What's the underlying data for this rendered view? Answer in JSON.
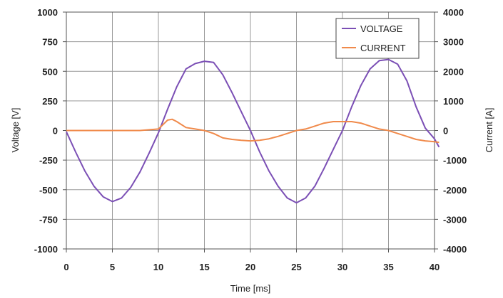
{
  "chart_data": {
    "type": "line",
    "xlabel": "Time [ms]",
    "ylabel": "Voltage [V]",
    "y2label": "Current [A]",
    "xlim": [
      0,
      40
    ],
    "ylim": [
      -1000,
      1000
    ],
    "y2lim": [
      -4000,
      4000
    ],
    "x_ticks": [
      "0",
      "5",
      "10",
      "15",
      "20",
      "25",
      "30",
      "35",
      "40"
    ],
    "y_ticks": [
      "1000",
      "750",
      "500",
      "250",
      "0",
      "-250",
      "-500",
      "-750",
      "-1000"
    ],
    "y2_ticks": [
      "4000",
      "3000",
      "2000",
      "1000",
      "0",
      "-1000",
      "-2000",
      "-3000",
      "-4000"
    ],
    "grid": true,
    "legend_position": "top-right",
    "series": [
      {
        "name": "VOLTAGE",
        "axis": "left",
        "color": "#7b4fb5",
        "x": [
          0,
          1,
          2,
          3,
          4,
          5,
          6,
          7,
          8,
          9,
          10,
          11,
          12,
          13,
          14,
          15,
          16,
          17,
          18,
          19,
          20,
          21,
          22,
          23,
          24,
          25,
          26,
          27,
          28,
          29,
          30,
          31,
          32,
          33,
          34,
          35,
          36,
          37,
          38,
          39,
          40,
          40.5
        ],
        "y": [
          -10,
          -180,
          -340,
          -470,
          -560,
          -600,
          -570,
          -480,
          -350,
          -190,
          -20,
          180,
          370,
          520,
          565,
          585,
          575,
          470,
          320,
          160,
          0,
          -180,
          -340,
          -470,
          -570,
          -610,
          -570,
          -470,
          -320,
          -160,
          0,
          200,
          380,
          520,
          590,
          600,
          560,
          420,
          200,
          20,
          -70,
          -140
        ]
      },
      {
        "name": "CURRENT",
        "axis": "right",
        "color": "#f08a4b",
        "x": [
          0,
          2,
          4,
          6,
          8,
          10,
          10.5,
          11,
          11.5,
          12,
          13,
          14,
          15,
          16,
          17,
          18,
          19,
          20,
          21,
          22,
          23,
          24,
          25,
          26,
          27,
          28,
          29,
          30,
          31,
          32,
          33,
          34,
          35,
          36,
          37,
          38,
          39,
          40,
          40.5
        ],
        "y": [
          0,
          0,
          0,
          0,
          0,
          50,
          200,
          350,
          380,
          300,
          100,
          50,
          0,
          -100,
          -250,
          -300,
          -330,
          -350,
          -330,
          -280,
          -200,
          -100,
          0,
          50,
          150,
          250,
          300,
          300,
          300,
          250,
          150,
          50,
          0,
          -100,
          -200,
          -300,
          -350,
          -380,
          -400
        ]
      }
    ]
  }
}
